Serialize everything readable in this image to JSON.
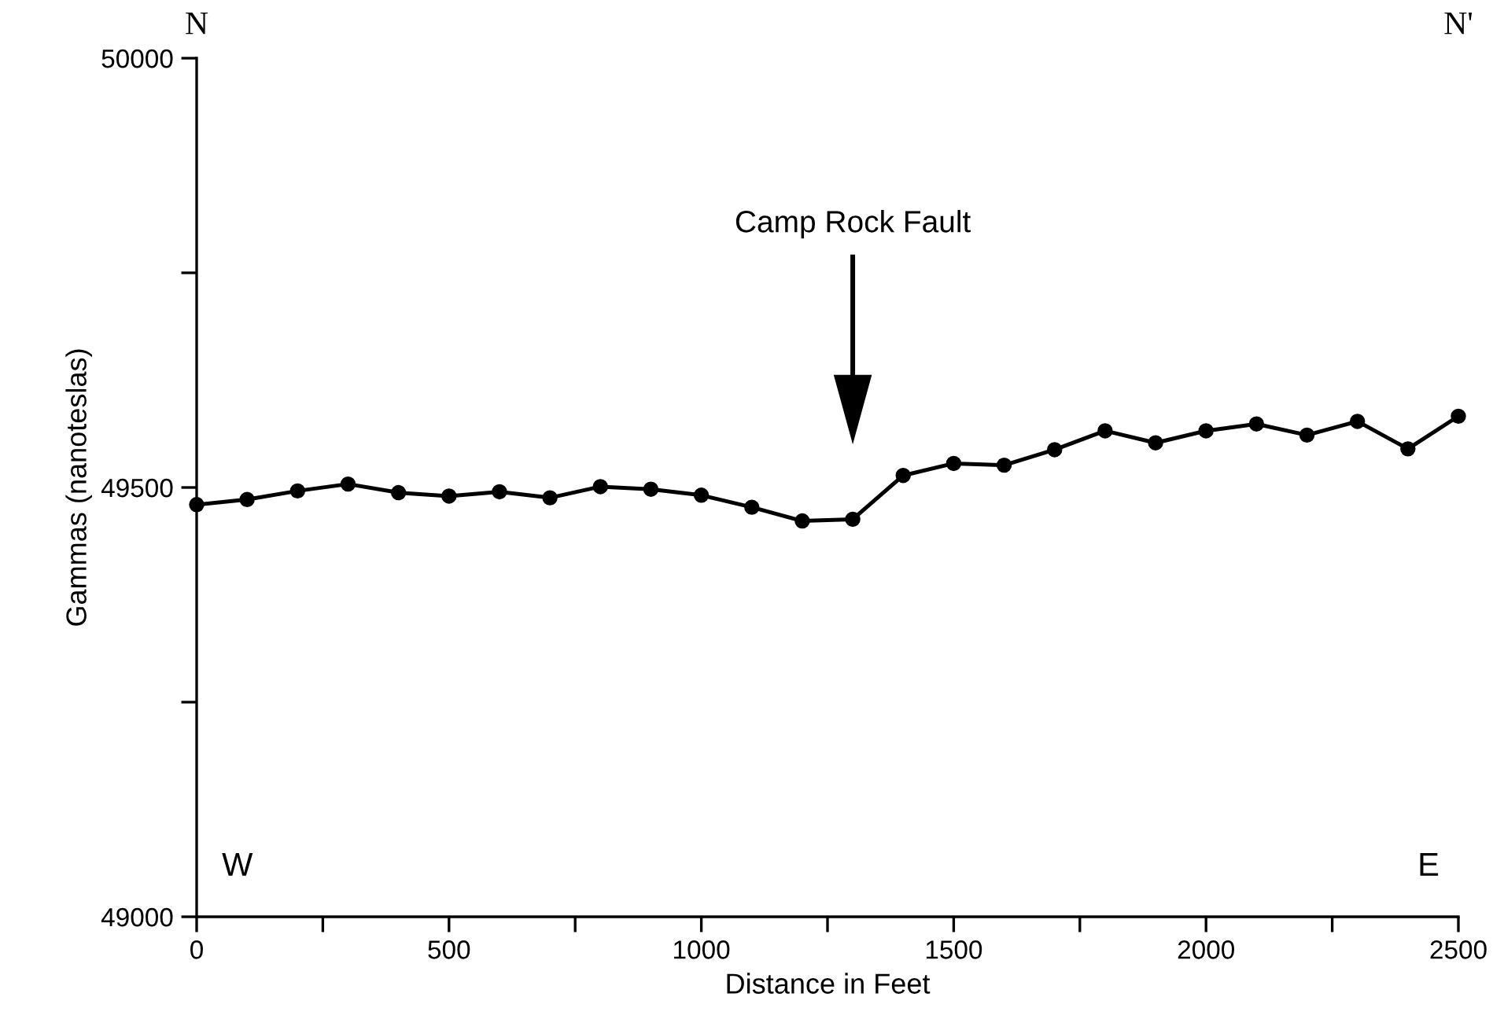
{
  "chart_data": {
    "type": "line",
    "xlabel": "Distance in Feet",
    "ylabel": "Gammas (nanoteslas)",
    "x": [
      0,
      100,
      200,
      300,
      400,
      500,
      600,
      700,
      800,
      900,
      1000,
      1100,
      1200,
      1300,
      1400,
      1500,
      1600,
      1700,
      1800,
      1900,
      2000,
      2100,
      2200,
      2300,
      2400,
      2500
    ],
    "series": [
      {
        "color": "#000000",
        "values": [
          49480,
          49486,
          49496,
          49504,
          49494,
          49490,
          49495,
          49488,
          49501,
          49498,
          49491,
          49477,
          49461,
          49463,
          49514,
          49528,
          49526,
          49544,
          49566,
          49552,
          49566,
          49574,
          49561,
          49577,
          49545,
          49583
        ]
      }
    ],
    "xlim": [
      0,
      2500
    ],
    "ylim": [
      49000,
      50000
    ],
    "xticks": [
      0,
      {
        "value": 250,
        "label": null
      },
      500,
      {
        "value": 750,
        "label": null
      },
      1000,
      {
        "value": 1250,
        "label": null
      },
      1500,
      {
        "value": 1750,
        "label": null
      },
      2000,
      {
        "value": 2250,
        "label": null
      },
      2500
    ],
    "yticks": [
      49000,
      {
        "value": 49250,
        "label": null
      },
      49500,
      {
        "value": 49750,
        "label": null
      },
      50000
    ],
    "marker": "circle",
    "line_style": "solid",
    "grid": false,
    "legend": false,
    "annotations": [
      "Camp Rock Fault",
      "N",
      "N'",
      "W",
      "E"
    ]
  }
}
